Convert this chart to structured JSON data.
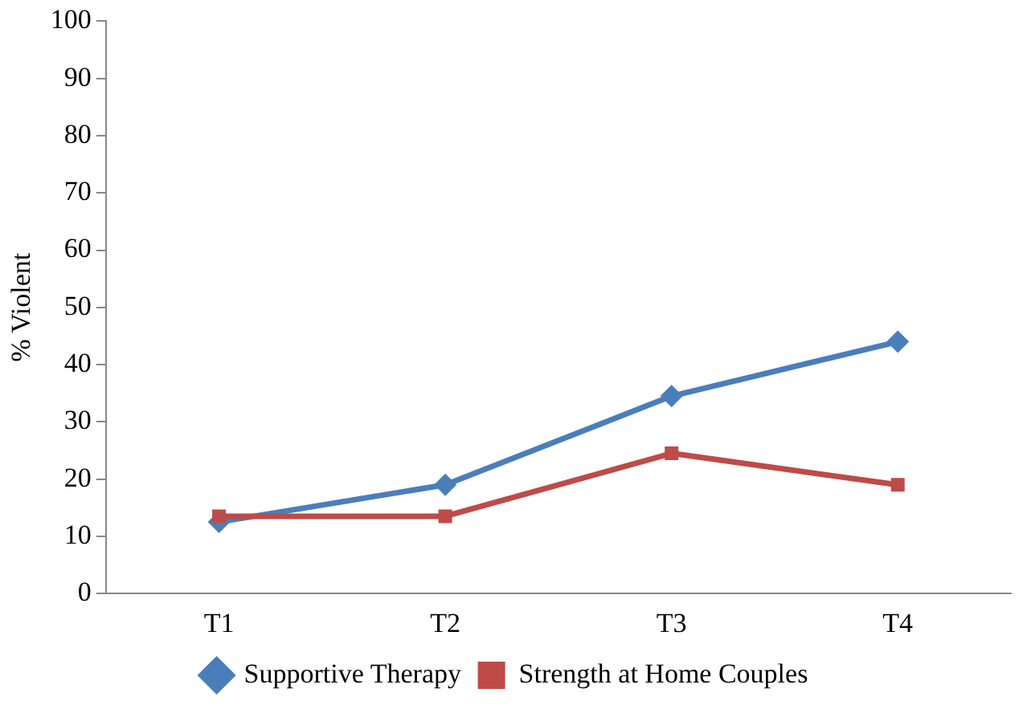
{
  "chart_data": {
    "type": "line",
    "ylabel": "% Violent",
    "categories": [
      "T1",
      "T2",
      "T3",
      "T4"
    ],
    "series": [
      {
        "name": "Supportive Therapy",
        "color": "#4a7ebb",
        "marker": "diamond",
        "values": [
          12.5,
          19,
          34.5,
          44
        ]
      },
      {
        "name": "Strength at Home Couples",
        "color": "#be4b48",
        "marker": "square",
        "values": [
          13.5,
          13.5,
          24.5,
          19
        ]
      }
    ],
    "ylim": [
      0,
      100
    ],
    "yticks": [
      0,
      10,
      20,
      30,
      40,
      50,
      60,
      70,
      80,
      90,
      100
    ],
    "grid": false,
    "legend": "bottom"
  }
}
